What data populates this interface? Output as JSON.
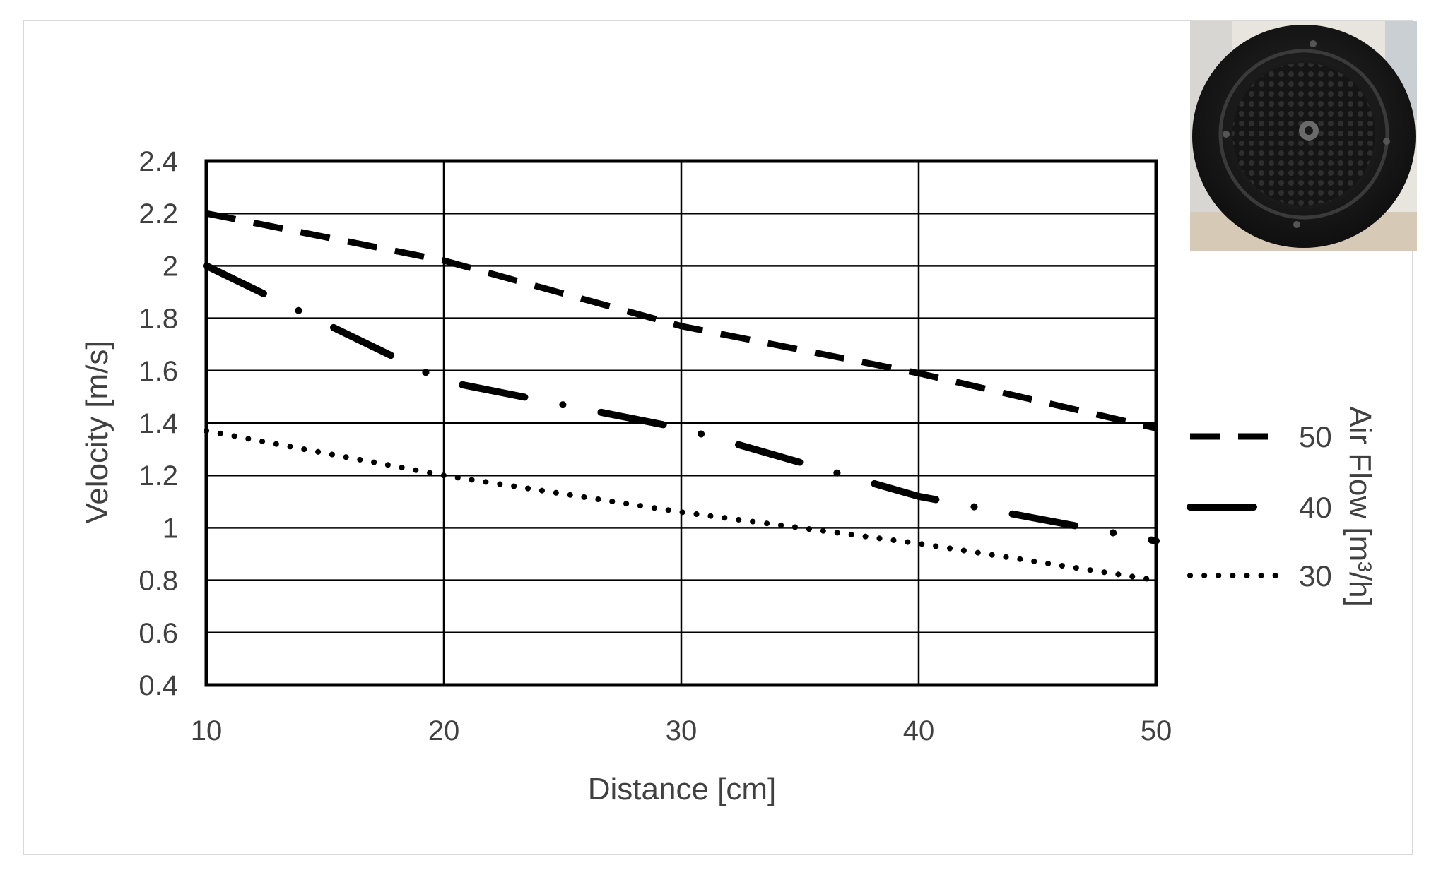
{
  "chart_data": {
    "type": "line",
    "title": "",
    "xlabel": "Distance [cm]",
    "ylabel": "Velocity [m/s]",
    "legend_title": "Air Flow [m³/h]",
    "legend_position": "right",
    "grid": true,
    "xlim": [
      10,
      50
    ],
    "ylim": [
      0.4,
      2.4
    ],
    "x_ticks": [
      "10",
      "20",
      "30",
      "40",
      "50"
    ],
    "y_ticks": [
      "0.4",
      "0.6",
      "0.8",
      "1",
      "1.2",
      "1.4",
      "1.6",
      "1.8",
      "2",
      "2.2",
      "2.4"
    ],
    "x": [
      10,
      20,
      30,
      40,
      50
    ],
    "series": [
      {
        "name": "50",
        "style": "dashed",
        "values": [
          2.2,
          2.02,
          1.77,
          1.59,
          1.38
        ]
      },
      {
        "name": "40",
        "style": "dash-dot",
        "values": [
          2.0,
          1.56,
          1.38,
          1.12,
          0.95
        ]
      },
      {
        "name": "30",
        "style": "dotted",
        "values": [
          1.37,
          1.2,
          1.06,
          0.94,
          0.8
        ]
      }
    ],
    "line_color": "#000000",
    "inset_photo": "round-air-outlet-nozzle"
  }
}
